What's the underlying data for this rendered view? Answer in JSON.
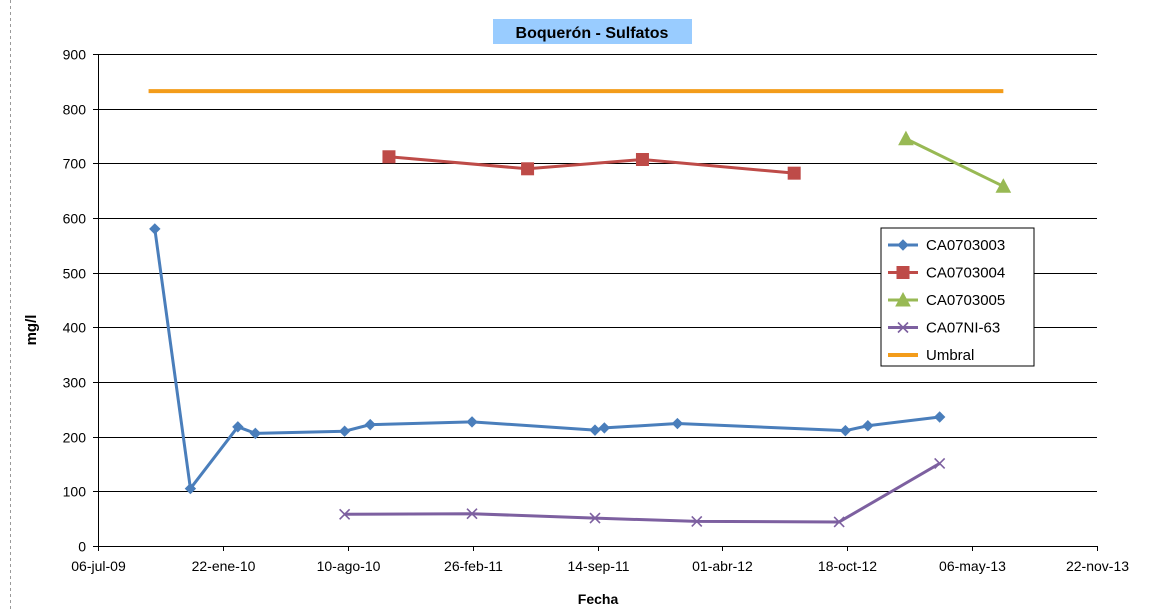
{
  "chart_data": {
    "type": "line",
    "title": "Boquerón - Sulfatos",
    "xlabel": "Fecha",
    "ylabel": "mg/l",
    "ylim": [
      0,
      900
    ],
    "yticks": [
      "0",
      "100",
      "200",
      "300",
      "400",
      "500",
      "600",
      "700",
      "800",
      "900"
    ],
    "xlim": [
      "2009-07-06",
      "2013-11-22"
    ],
    "xticks": [
      {
        "label": "06-jul-09",
        "date": "2009-07-06"
      },
      {
        "label": "22-ene-10",
        "date": "2010-01-22"
      },
      {
        "label": "10-ago-10",
        "date": "2010-08-10"
      },
      {
        "label": "26-feb-11",
        "date": "2011-02-26"
      },
      {
        "label": "14-sep-11",
        "date": "2011-09-14"
      },
      {
        "label": "01-abr-12",
        "date": "2012-04-01"
      },
      {
        "label": "18-oct-12",
        "date": "2012-10-18"
      },
      {
        "label": "06-may-13",
        "date": "2013-05-06"
      },
      {
        "label": "22-nov-13",
        "date": "2013-11-22"
      }
    ],
    "grid": "horizontal major gridlines",
    "legend_position": "right",
    "series": [
      {
        "name": "CA0703003",
        "color": "#4a7ebb",
        "marker": "diamond",
        "points": [
          {
            "x": "2009-10-05",
            "y": 580
          },
          {
            "x": "2009-12-01",
            "y": 105
          },
          {
            "x": "2010-02-15",
            "y": 218
          },
          {
            "x": "2010-03-15",
            "y": 206
          },
          {
            "x": "2010-08-05",
            "y": 210
          },
          {
            "x": "2010-09-15",
            "y": 222
          },
          {
            "x": "2011-02-25",
            "y": 227
          },
          {
            "x": "2011-09-10",
            "y": 212
          },
          {
            "x": "2011-09-25",
            "y": 216
          },
          {
            "x": "2012-01-20",
            "y": 224
          },
          {
            "x": "2012-10-15",
            "y": 211
          },
          {
            "x": "2012-11-20",
            "y": 220
          },
          {
            "x": "2013-03-15",
            "y": 236
          }
        ]
      },
      {
        "name": "CA0703004",
        "color": "#be4b48",
        "marker": "square",
        "points": [
          {
            "x": "2010-10-15",
            "y": 712
          },
          {
            "x": "2011-05-25",
            "y": 690
          },
          {
            "x": "2011-11-25",
            "y": 707
          },
          {
            "x": "2012-07-25",
            "y": 682
          }
        ]
      },
      {
        "name": "CA0703005",
        "color": "#98b954",
        "marker": "triangle",
        "points": [
          {
            "x": "2013-01-20",
            "y": 745
          },
          {
            "x": "2013-06-25",
            "y": 658
          }
        ]
      },
      {
        "name": "CA07NI-63",
        "color": "#7d60a0",
        "marker": "x",
        "points": [
          {
            "x": "2010-08-05",
            "y": 58
          },
          {
            "x": "2011-02-25",
            "y": 59
          },
          {
            "x": "2011-09-10",
            "y": 51
          },
          {
            "x": "2012-02-20",
            "y": 45
          },
          {
            "x": "2012-10-05",
            "y": 44
          },
          {
            "x": "2013-03-15",
            "y": 151
          }
        ]
      },
      {
        "name": "Umbral",
        "color": "#f39c1a",
        "marker": "none",
        "points": [
          {
            "x": "2009-09-25",
            "y": 832
          },
          {
            "x": "2013-06-25",
            "y": 832
          }
        ]
      }
    ]
  }
}
